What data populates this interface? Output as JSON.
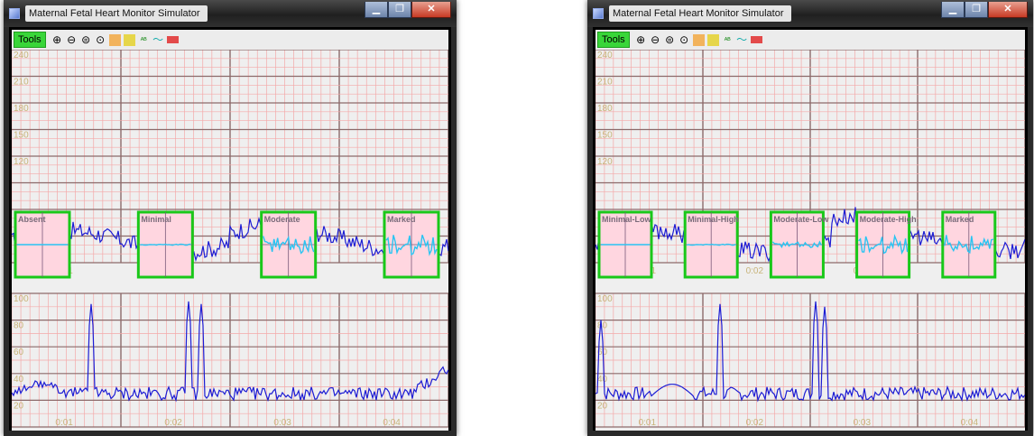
{
  "colors": {
    "grid_minor": "#f4a9a9",
    "grid_major": "#8c6a6a",
    "trace": "#1c1cd4",
    "axis_label": "#c8b47a",
    "panel_border": "#19c819",
    "panel_fill": "#ffd6e0",
    "panel_trace": "#29c4f2"
  },
  "windows": [
    {
      "title": "Maternal Fetal Heart Monitor Simulator",
      "window_buttons": [
        "▁",
        "❐",
        "✕"
      ],
      "toolbar": {
        "tools_label": "Tools",
        "icons": [
          "zoom-in-icon",
          "zoom-out-icon",
          "fit-width-icon",
          "fit-height-icon",
          "marker-orange-icon",
          "marker-yellow-icon",
          "label-text-icon",
          "wave-icon",
          "record-icon"
        ]
      },
      "fhr_axis_labels": [
        "240",
        "210",
        "180",
        "150",
        "120"
      ],
      "uc_axis_labels": [
        "100",
        "80",
        "60",
        "40",
        "20"
      ],
      "time_labels": [
        "0:01",
        "0:02",
        "0:03",
        "0:04"
      ],
      "variability_panels": [
        "Absent",
        "Minimal",
        "Moderate",
        "Marked"
      ]
    },
    {
      "title": "Maternal Fetal Heart Monitor Simulator",
      "window_buttons": [
        "▁",
        "❐",
        "✕"
      ],
      "toolbar": {
        "tools_label": "Tools",
        "icons": [
          "zoom-in-icon",
          "zoom-out-icon",
          "fit-width-icon",
          "fit-height-icon",
          "marker-orange-icon",
          "marker-yellow-icon",
          "label-text-icon",
          "wave-icon",
          "record-icon"
        ]
      },
      "fhr_axis_labels": [
        "240",
        "210",
        "180",
        "150",
        "120"
      ],
      "uc_axis_labels": [
        "100",
        "80",
        "60",
        "40",
        "20"
      ],
      "time_labels": [
        "0:01",
        "0:02",
        "0:03",
        "0:04"
      ],
      "variability_panels": [
        "Minimal-Low",
        "Minimal-High",
        "Moderate-Low",
        "Moderate-High",
        "Marked"
      ]
    }
  ]
}
